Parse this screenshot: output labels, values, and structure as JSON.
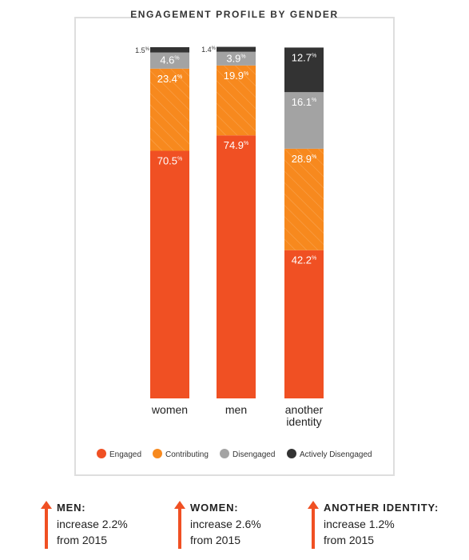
{
  "chart_data": {
    "type": "bar",
    "stacked": true,
    "title": "ENGAGEMENT PROFILE BY GENDER",
    "categories": [
      "women",
      "men",
      "another identity"
    ],
    "series": [
      {
        "name": "Engaged",
        "color": "#f05023",
        "values": [
          70.5,
          74.9,
          42.2
        ]
      },
      {
        "name": "Contributing",
        "color": "#f7891e",
        "values": [
          23.4,
          19.9,
          28.9
        ]
      },
      {
        "name": "Disengaged",
        "color": "#a3a3a3",
        "values": [
          4.6,
          3.9,
          16.1
        ]
      },
      {
        "name": "Actively Disengaged",
        "color": "#333333",
        "values": [
          1.5,
          1.4,
          12.7
        ]
      }
    ],
    "value_labels": [
      [
        "70.5",
        "23.4",
        "4.6",
        "1.5"
      ],
      [
        "74.9",
        "19.9",
        "3.9",
        "1.4"
      ],
      [
        "42.2",
        "28.9",
        "16.1",
        "12.7"
      ]
    ],
    "unit_symbol": "%",
    "legend_position": "bottom",
    "ylim": [
      0,
      100
    ]
  },
  "callouts": [
    {
      "label": "MEN:",
      "line1": "increase 2.2%",
      "line2": "from 2015",
      "color": "#f05023"
    },
    {
      "label": "WOMEN:",
      "line1": "increase 2.6%",
      "line2": "from 2015",
      "color": "#f05023"
    },
    {
      "label": "ANOTHER IDENTITY:",
      "line1": "increase 1.2%",
      "line2": "from 2015",
      "color": "#f05023"
    }
  ]
}
